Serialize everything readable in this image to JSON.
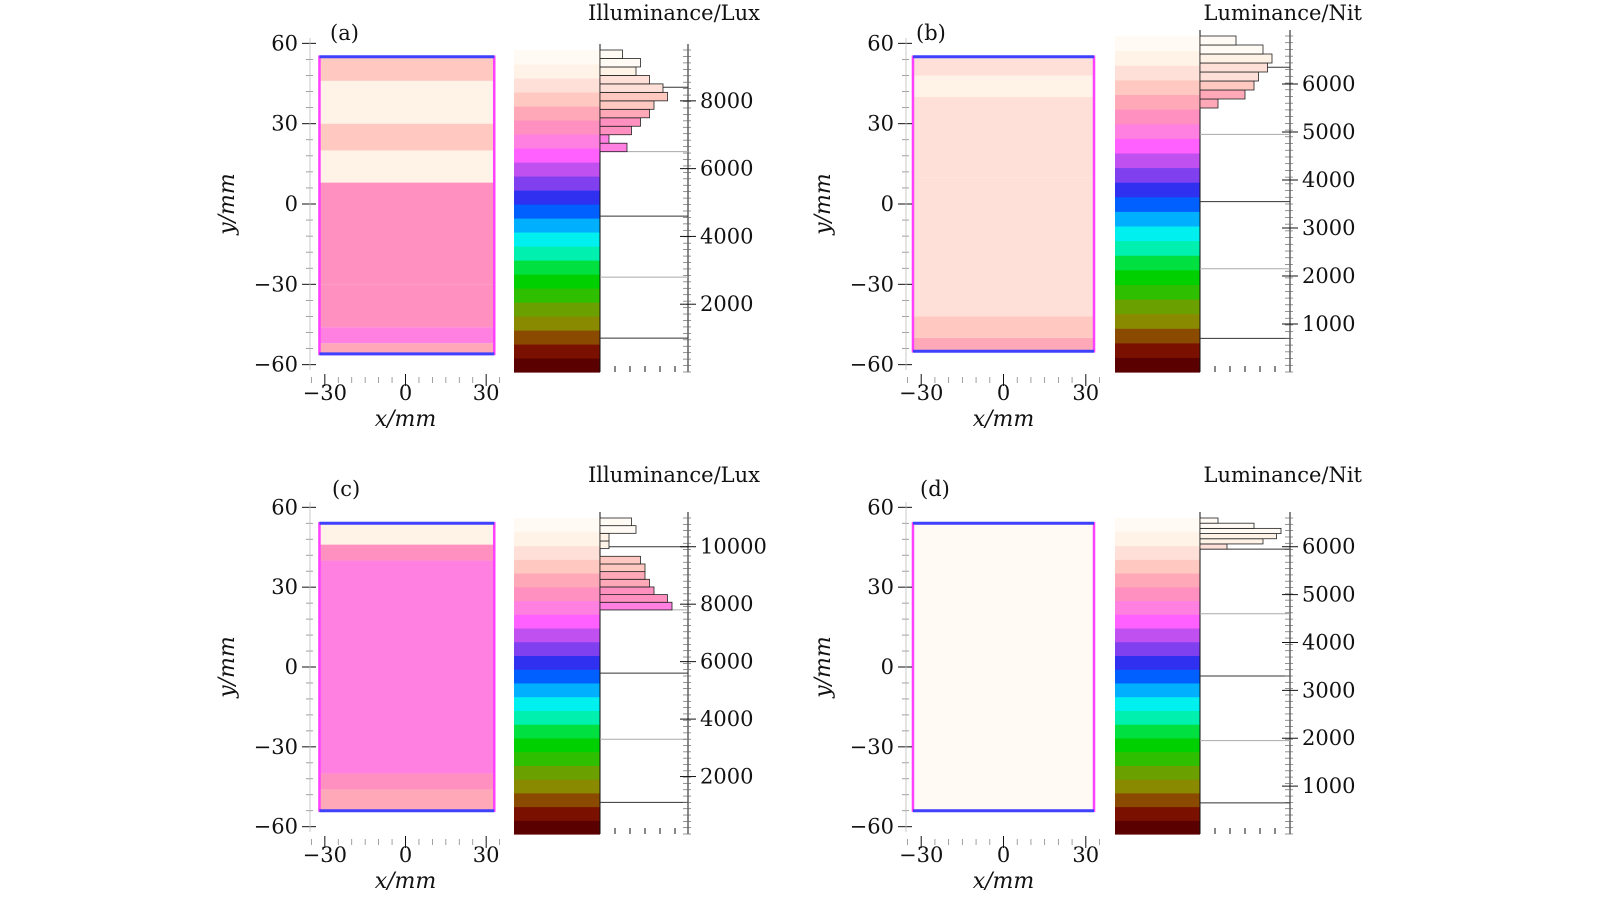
{
  "chart_data": [
    {
      "type": "heatmap",
      "panel_label": "(a)",
      "colorbar_title": "Illuminance/Lux",
      "xlabel": "x/mm",
      "ylabel": "y/mm",
      "x_ticks": [
        "−30",
        "0",
        "30"
      ],
      "y_ticks": [
        "60",
        "30",
        "0",
        "−30",
        "−60"
      ],
      "xlim": [
        -37,
        37
      ],
      "ylim": [
        -62,
        62
      ],
      "region": {
        "x": [
          -32,
          33
        ],
        "y": [
          -56,
          55
        ]
      },
      "colorbar_ticks": [
        "8000",
        "6000",
        "4000",
        "2000"
      ],
      "colorbar_range": [
        0,
        9500
      ],
      "colorbar_lines": [
        1000,
        2800,
        4600,
        6500,
        8400
      ],
      "histogram_range": [
        6500,
        9500
      ],
      "histogram_counts": [
        0.3,
        0.1,
        0.35,
        0.45,
        0.55,
        0.6,
        0.75,
        0.7,
        0.55,
        0.4,
        0.45,
        0.25
      ],
      "field_bands": [
        {
          "from": -56,
          "to": -52,
          "value": 7600
        },
        {
          "from": -52,
          "to": -46,
          "value": 7000
        },
        {
          "from": -46,
          "to": -30,
          "value": 7300
        },
        {
          "from": -30,
          "to": 8,
          "value": 7400
        },
        {
          "from": 8,
          "to": 20,
          "value": 8700
        },
        {
          "from": 20,
          "to": 30,
          "value": 7900
        },
        {
          "from": 30,
          "to": 46,
          "value": 8800
        },
        {
          "from": 46,
          "to": 55,
          "value": 8200
        }
      ]
    },
    {
      "type": "heatmap",
      "panel_label": "(b)",
      "colorbar_title": "Luminance/Nit",
      "xlabel": "x/mm",
      "ylabel": "y/mm",
      "x_ticks": [
        "−30",
        "0",
        "30"
      ],
      "y_ticks": [
        "60",
        "30",
        "0",
        "−30",
        "−60"
      ],
      "xlim": [
        -37,
        37
      ],
      "ylim": [
        -62,
        62
      ],
      "region": {
        "x": [
          -33,
          33
        ],
        "y": [
          -55,
          55
        ]
      },
      "colorbar_ticks": [
        "6000",
        "5000",
        "4000",
        "3000",
        "2000",
        "1000"
      ],
      "colorbar_range": [
        0,
        7000
      ],
      "colorbar_lines": [
        700,
        2150,
        3550,
        4950,
        6350
      ],
      "histogram_range": [
        5500,
        7000
      ],
      "histogram_counts": [
        0.2,
        0.5,
        0.6,
        0.65,
        0.75,
        0.8,
        0.7,
        0.4
      ],
      "field_bands": [
        {
          "from": -55,
          "to": -50,
          "value": 5600
        },
        {
          "from": -50,
          "to": -42,
          "value": 5900
        },
        {
          "from": -42,
          "to": 10,
          "value": 6200
        },
        {
          "from": 10,
          "to": 40,
          "value": 6300
        },
        {
          "from": 40,
          "to": 48,
          "value": 6600
        },
        {
          "from": 48,
          "to": 55,
          "value": 6200
        }
      ]
    },
    {
      "type": "heatmap",
      "panel_label": "(c)",
      "colorbar_title": "Illuminance/Lux",
      "xlabel": "x/mm",
      "ylabel": "y/mm",
      "x_ticks": [
        "−30",
        "0",
        "30"
      ],
      "y_ticks": [
        "60",
        "30",
        "0",
        "−30",
        "−60"
      ],
      "xlim": [
        -37,
        37
      ],
      "ylim": [
        -62,
        62
      ],
      "region": {
        "x": [
          -32,
          33
        ],
        "y": [
          -54,
          54
        ]
      },
      "colorbar_ticks": [
        "10000",
        "8000",
        "6000",
        "4000",
        "2000"
      ],
      "colorbar_range": [
        0,
        11000
      ],
      "colorbar_lines": [
        1100,
        3300,
        5600,
        7800,
        10000
      ],
      "histogram_range": [
        7800,
        11000
      ],
      "histogram_counts": [
        0.8,
        0.75,
        0.6,
        0.55,
        0.5,
        0.5,
        0.45,
        0.0,
        0.1,
        0.1,
        0.4,
        0.35
      ],
      "field_bands": [
        {
          "from": -54,
          "to": -46,
          "value": 8800
        },
        {
          "from": -46,
          "to": -40,
          "value": 8200
        },
        {
          "from": -40,
          "to": 40,
          "value": 7950
        },
        {
          "from": 40,
          "to": 46,
          "value": 8500
        },
        {
          "from": 46,
          "to": 54,
          "value": 10200
        }
      ]
    },
    {
      "type": "heatmap",
      "panel_label": "(d)",
      "colorbar_title": "Luminance/Nit",
      "xlabel": "x/mm",
      "ylabel": "y/mm",
      "x_ticks": [
        "−30",
        "0",
        "30"
      ],
      "y_ticks": [
        "60",
        "30",
        "0",
        "−30",
        "−60"
      ],
      "xlim": [
        -37,
        37
      ],
      "ylim": [
        -62,
        62
      ],
      "region": {
        "x": [
          -33,
          33
        ],
        "y": [
          -54,
          54
        ]
      },
      "colorbar_ticks": [
        "6000",
        "5000",
        "4000",
        "3000",
        "2000",
        "1000"
      ],
      "colorbar_range": [
        0,
        6600
      ],
      "colorbar_lines": [
        650,
        1950,
        3300,
        4600,
        5950
      ],
      "histogram_range": [
        5950,
        6600
      ],
      "histogram_counts": [
        0.3,
        0.7,
        0.85,
        0.9,
        0.6,
        0.2
      ],
      "field_bands": [
        {
          "from": -54,
          "to": 54,
          "value": 6400
        }
      ]
    }
  ],
  "colormap": [
    "#5a0000",
    "#7a1000",
    "#8a4a00",
    "#8a8a00",
    "#6aa000",
    "#2ec000",
    "#00d000",
    "#00e040",
    "#00f0b0",
    "#00f0f0",
    "#00b0ff",
    "#0060ff",
    "#3030f0",
    "#8040f0",
    "#c050f0",
    "#ff60ff",
    "#ff80e0",
    "#ff90c0",
    "#ffa8b8",
    "#ffc8c0",
    "#ffe0d8",
    "#fff2e6",
    "#fffaf4"
  ],
  "colors": {
    "frame": "#4040ff",
    "frame_edge": "#ff40ff",
    "axis": "#111111",
    "hist_fill": "#ff80ff"
  }
}
